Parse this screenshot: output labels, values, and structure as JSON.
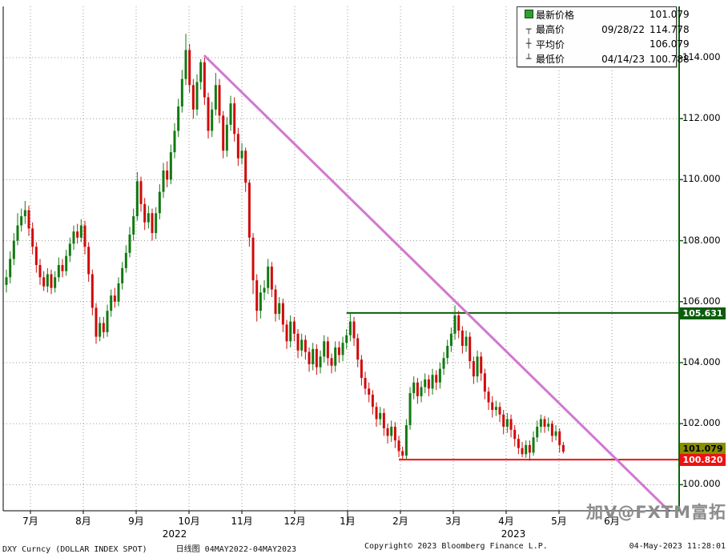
{
  "legend": {
    "rows": [
      {
        "icon": "series-swatch",
        "label": "最新价格",
        "date": "",
        "value": "101.079"
      },
      {
        "icon": "high-marker",
        "label": "最高价",
        "date": "09/28/22",
        "value": "114.778"
      },
      {
        "icon": "avg-marker",
        "label": "平均价",
        "date": "",
        "value": "106.079"
      },
      {
        "icon": "low-marker",
        "label": "最低价",
        "date": "04/14/23",
        "value": "100.788"
      }
    ]
  },
  "footer": {
    "instrument": "DXY Curncy (DOLLAR INDEX SPOT)",
    "period": "日线图 04MAY2022-04MAY2023",
    "copyright": "Copyright© 2023 Bloomberg Finance L.P.",
    "timestamp": "04-May-2023 11:28:01"
  },
  "watermark": {
    "text": "加V@FXTM富拓"
  },
  "chart_data": {
    "type": "candlestick",
    "instrument": "DXY Curncy (DOLLAR INDEX SPOT)",
    "period_label": "日线图 04MAY2022-04MAY2023",
    "latest_price": 101.079,
    "high": {
      "date": "09/28/22",
      "value": 114.778
    },
    "average": 106.079,
    "low": {
      "date": "04/14/23",
      "value": 100.788
    },
    "colors": {
      "up": "#117a11",
      "down": "#cf0a0a",
      "trend": "#d178d1",
      "grid": "#999999",
      "axis_green": "#0a640a",
      "level_high": "#0b5e0b",
      "level_low": "#ee1111",
      "latest_tag_bg": "#8a8f00"
    },
    "y_axis": {
      "ticks": [
        114,
        112,
        110,
        108,
        106,
        104,
        102,
        100
      ]
    },
    "x_axis": {
      "month_labels": [
        "7月",
        "8月",
        "9月",
        "10月",
        "11月",
        "12月",
        "1月",
        "2月",
        "3月",
        "4月",
        "5月",
        "6月"
      ],
      "year_labels": [
        "2022",
        "2023"
      ]
    },
    "levels": [
      {
        "name": "resistance",
        "value": 105.631,
        "label": "105.631",
        "start_index": 91,
        "color": "#0b5e0b",
        "tag_text": "#ffffff"
      },
      {
        "name": "support",
        "value": 100.82,
        "label": "100.820",
        "start_index": 105,
        "color": "#ee1111",
        "tag_text": "#ffffff"
      }
    ],
    "latest_tag": {
      "value": 101.079,
      "label": "101.079",
      "tag_text": "#000000"
    },
    "trendline": {
      "from_index": 53.1,
      "from_price": 114.05,
      "to_index": 177.2,
      "to_price": 99.15
    },
    "candles": [
      [
        106.55,
        107.05,
        106.3,
        106.8
      ],
      [
        106.8,
        107.65,
        106.6,
        107.4
      ],
      [
        107.4,
        108.25,
        107.2,
        108.0
      ],
      [
        108.0,
        108.9,
        107.85,
        108.5
      ],
      [
        108.5,
        109.05,
        108.3,
        108.8
      ],
      [
        108.8,
        109.3,
        108.55,
        109.0
      ],
      [
        109.0,
        109.15,
        108.15,
        108.4
      ],
      [
        108.4,
        108.6,
        107.55,
        107.8
      ],
      [
        107.8,
        107.95,
        106.95,
        107.2
      ],
      [
        107.2,
        107.4,
        106.55,
        106.8
      ],
      [
        106.8,
        107.0,
        106.35,
        106.5
      ],
      [
        106.5,
        107.1,
        106.3,
        106.9
      ],
      [
        106.9,
        107.05,
        106.25,
        106.45
      ],
      [
        106.45,
        107.0,
        106.3,
        106.8
      ],
      [
        106.8,
        107.45,
        106.65,
        107.2
      ],
      [
        107.2,
        107.4,
        106.8,
        107.0
      ],
      [
        107.0,
        107.7,
        106.85,
        107.5
      ],
      [
        107.5,
        108.1,
        107.3,
        107.9
      ],
      [
        107.9,
        108.5,
        107.7,
        108.3
      ],
      [
        108.3,
        108.55,
        107.9,
        108.1
      ],
      [
        108.1,
        108.7,
        107.95,
        108.5
      ],
      [
        108.5,
        108.65,
        107.55,
        107.8
      ],
      [
        107.8,
        107.95,
        106.65,
        106.9
      ],
      [
        106.9,
        107.05,
        105.55,
        105.8
      ],
      [
        105.8,
        105.95,
        104.62,
        104.85
      ],
      [
        104.85,
        105.5,
        104.7,
        105.3
      ],
      [
        105.3,
        105.5,
        104.8,
        105.0
      ],
      [
        105.0,
        105.9,
        104.85,
        105.7
      ],
      [
        105.7,
        106.4,
        105.5,
        106.2
      ],
      [
        106.2,
        106.45,
        105.8,
        106.0
      ],
      [
        106.0,
        106.8,
        105.85,
        106.6
      ],
      [
        106.6,
        107.3,
        106.4,
        107.1
      ],
      [
        107.1,
        107.85,
        106.95,
        107.6
      ],
      [
        107.6,
        108.45,
        107.45,
        108.2
      ],
      [
        108.2,
        109.05,
        108.0,
        108.8
      ],
      [
        108.8,
        110.25,
        108.65,
        109.95
      ],
      [
        109.95,
        110.1,
        108.95,
        109.2
      ],
      [
        109.2,
        109.4,
        108.35,
        108.6
      ],
      [
        108.6,
        109.15,
        108.4,
        108.9
      ],
      [
        108.9,
        109.05,
        108.0,
        108.25
      ],
      [
        108.25,
        109.1,
        108.05,
        108.9
      ],
      [
        108.9,
        109.85,
        108.7,
        109.6
      ],
      [
        109.6,
        110.55,
        109.4,
        110.3
      ],
      [
        110.3,
        110.6,
        109.75,
        110.0
      ],
      [
        110.0,
        111.15,
        109.85,
        110.9
      ],
      [
        110.9,
        111.85,
        110.7,
        111.6
      ],
      [
        111.6,
        112.65,
        111.4,
        112.4
      ],
      [
        112.4,
        113.6,
        112.2,
        113.3
      ],
      [
        113.3,
        114.78,
        113.1,
        114.25
      ],
      [
        114.25,
        114.45,
        112.85,
        113.1
      ],
      [
        113.1,
        113.3,
        112.0,
        112.3
      ],
      [
        112.3,
        113.45,
        112.1,
        113.2
      ],
      [
        113.2,
        113.95,
        112.95,
        113.85
      ],
      [
        113.85,
        114.0,
        112.45,
        112.7
      ],
      [
        112.7,
        112.85,
        111.35,
        111.6
      ],
      [
        111.6,
        112.55,
        111.4,
        112.3
      ],
      [
        112.3,
        113.5,
        112.1,
        113.1
      ],
      [
        113.1,
        113.3,
        111.85,
        112.1
      ],
      [
        112.1,
        112.25,
        110.7,
        110.95
      ],
      [
        110.95,
        112.05,
        110.75,
        111.8
      ],
      [
        111.8,
        112.75,
        111.6,
        112.5
      ],
      [
        112.5,
        112.7,
        111.25,
        111.5
      ],
      [
        111.5,
        111.7,
        110.45,
        110.7
      ],
      [
        110.7,
        111.2,
        110.5,
        110.95
      ],
      [
        110.95,
        111.05,
        109.6,
        109.9
      ],
      [
        109.9,
        110.0,
        107.8,
        108.1
      ],
      [
        108.1,
        108.25,
        106.25,
        106.7
      ],
      [
        106.7,
        106.9,
        105.35,
        105.7
      ],
      [
        105.7,
        106.55,
        105.45,
        106.3
      ],
      [
        106.3,
        106.7,
        106.05,
        106.45
      ],
      [
        106.45,
        107.4,
        106.25,
        107.15
      ],
      [
        107.15,
        107.3,
        106.15,
        106.4
      ],
      [
        106.4,
        106.55,
        105.35,
        105.6
      ],
      [
        105.6,
        106.15,
        105.4,
        105.95
      ],
      [
        105.95,
        106.1,
        105.0,
        105.25
      ],
      [
        105.25,
        105.4,
        104.45,
        104.7
      ],
      [
        104.7,
        105.55,
        104.5,
        105.35
      ],
      [
        105.35,
        105.5,
        104.7,
        104.95
      ],
      [
        104.95,
        105.1,
        104.15,
        104.4
      ],
      [
        104.4,
        104.95,
        104.2,
        104.75
      ],
      [
        104.75,
        104.9,
        104.1,
        104.35
      ],
      [
        104.35,
        104.5,
        103.7,
        103.95
      ],
      [
        103.95,
        104.65,
        103.75,
        104.45
      ],
      [
        104.45,
        104.6,
        103.6,
        103.85
      ],
      [
        103.85,
        104.4,
        103.65,
        104.2
      ],
      [
        104.2,
        104.9,
        104.0,
        104.7
      ],
      [
        104.7,
        104.85,
        103.9,
        104.15
      ],
      [
        104.15,
        104.3,
        103.65,
        103.9
      ],
      [
        103.9,
        104.7,
        103.7,
        104.5
      ],
      [
        104.5,
        104.7,
        104.0,
        104.25
      ],
      [
        104.25,
        104.85,
        104.05,
        104.65
      ],
      [
        104.65,
        105.1,
        104.45,
        104.9
      ],
      [
        104.9,
        105.63,
        104.7,
        105.35
      ],
      [
        105.35,
        105.5,
        104.55,
        104.8
      ],
      [
        104.8,
        104.95,
        103.85,
        104.1
      ],
      [
        104.1,
        104.25,
        103.25,
        103.5
      ],
      [
        103.5,
        103.7,
        102.95,
        103.15
      ],
      [
        103.15,
        103.35,
        102.7,
        102.95
      ],
      [
        102.95,
        103.1,
        102.3,
        102.55
      ],
      [
        102.55,
        102.7,
        101.9,
        102.15
      ],
      [
        102.15,
        102.55,
        101.95,
        102.35
      ],
      [
        102.35,
        102.5,
        101.6,
        101.85
      ],
      [
        101.85,
        102.0,
        101.35,
        101.6
      ],
      [
        101.6,
        102.1,
        101.4,
        101.9
      ],
      [
        101.9,
        102.05,
        101.2,
        101.45
      ],
      [
        101.45,
        101.6,
        100.9,
        101.1
      ],
      [
        101.1,
        101.25,
        100.82,
        100.95
      ],
      [
        100.95,
        102.15,
        100.85,
        101.95
      ],
      [
        101.95,
        103.2,
        101.8,
        103.0
      ],
      [
        103.0,
        103.55,
        102.8,
        103.35
      ],
      [
        103.35,
        103.5,
        102.65,
        102.9
      ],
      [
        102.9,
        103.4,
        102.7,
        103.2
      ],
      [
        103.2,
        103.65,
        103.0,
        103.45
      ],
      [
        103.45,
        103.6,
        102.9,
        103.15
      ],
      [
        103.15,
        103.8,
        102.95,
        103.6
      ],
      [
        103.6,
        103.75,
        103.1,
        103.35
      ],
      [
        103.35,
        104.0,
        103.15,
        103.8
      ],
      [
        103.8,
        104.35,
        103.6,
        104.15
      ],
      [
        104.15,
        104.75,
        103.95,
        104.55
      ],
      [
        104.55,
        105.15,
        104.35,
        104.95
      ],
      [
        104.95,
        105.88,
        104.75,
        105.55
      ],
      [
        105.55,
        105.7,
        104.8,
        105.05
      ],
      [
        105.05,
        105.2,
        104.3,
        104.55
      ],
      [
        104.55,
        105.05,
        104.35,
        104.85
      ],
      [
        104.85,
        105.0,
        103.8,
        104.05
      ],
      [
        104.05,
        104.2,
        103.3,
        103.55
      ],
      [
        103.55,
        104.4,
        103.35,
        104.2
      ],
      [
        104.2,
        104.35,
        103.4,
        103.65
      ],
      [
        103.65,
        103.8,
        102.8,
        103.05
      ],
      [
        103.05,
        103.2,
        102.45,
        102.7
      ],
      [
        102.7,
        102.9,
        102.2,
        102.45
      ],
      [
        102.45,
        102.75,
        102.25,
        102.55
      ],
      [
        102.55,
        102.7,
        102.05,
        102.3
      ],
      [
        102.3,
        102.45,
        101.65,
        101.9
      ],
      [
        101.9,
        102.35,
        101.7,
        102.15
      ],
      [
        102.15,
        102.3,
        101.55,
        101.8
      ],
      [
        101.8,
        101.95,
        101.25,
        101.5
      ],
      [
        101.5,
        101.65,
        101.0,
        101.2
      ],
      [
        101.2,
        101.4,
        100.9,
        101.0
      ],
      [
        101.0,
        101.45,
        100.88,
        101.3
      ],
      [
        101.3,
        101.45,
        100.79,
        101.05
      ],
      [
        101.05,
        101.75,
        100.95,
        101.55
      ],
      [
        101.55,
        102.1,
        101.4,
        101.9
      ],
      [
        101.9,
        102.3,
        101.7,
        102.15
      ],
      [
        102.15,
        102.25,
        101.7,
        101.9
      ],
      [
        101.9,
        102.2,
        101.75,
        102.0
      ],
      [
        102.0,
        102.1,
        101.4,
        101.6
      ],
      [
        101.6,
        101.95,
        101.45,
        101.75
      ],
      [
        101.75,
        101.85,
        101.05,
        101.3
      ],
      [
        101.3,
        101.4,
        101.02,
        101.08
      ]
    ]
  }
}
